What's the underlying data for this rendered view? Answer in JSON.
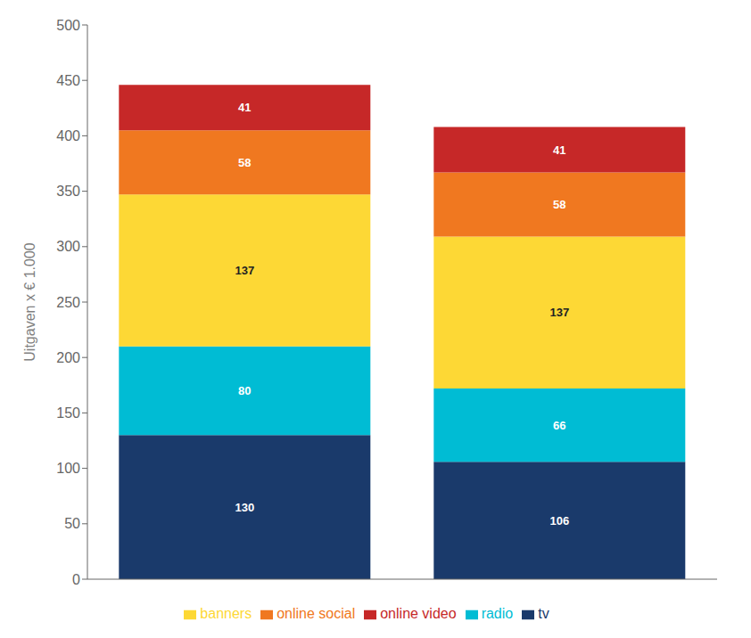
{
  "chart_data": {
    "type": "bar",
    "stacked": true,
    "categories": [
      null,
      null
    ],
    "series": [
      {
        "name": "tv",
        "color": "#1a3a6b",
        "values": [
          130,
          106
        ]
      },
      {
        "name": "radio",
        "color": "#00bcd4",
        "values": [
          80,
          66
        ]
      },
      {
        "name": "banners",
        "color": "#fdd835",
        "values": [
          137,
          137
        ]
      },
      {
        "name": "online social",
        "color": "#f07820",
        "values": [
          58,
          58
        ]
      },
      {
        "name": "online video",
        "color": "#c62828",
        "values": [
          41,
          41
        ]
      }
    ],
    "ylabel": "Uitgaven x € 1.000",
    "ylim": [
      0,
      500
    ],
    "yticks": [
      0,
      50,
      100,
      150,
      200,
      250,
      300,
      350,
      400,
      450,
      500
    ],
    "grid": false,
    "legend": "bottom",
    "data_labels": true,
    "tick_labels": "y"
  }
}
